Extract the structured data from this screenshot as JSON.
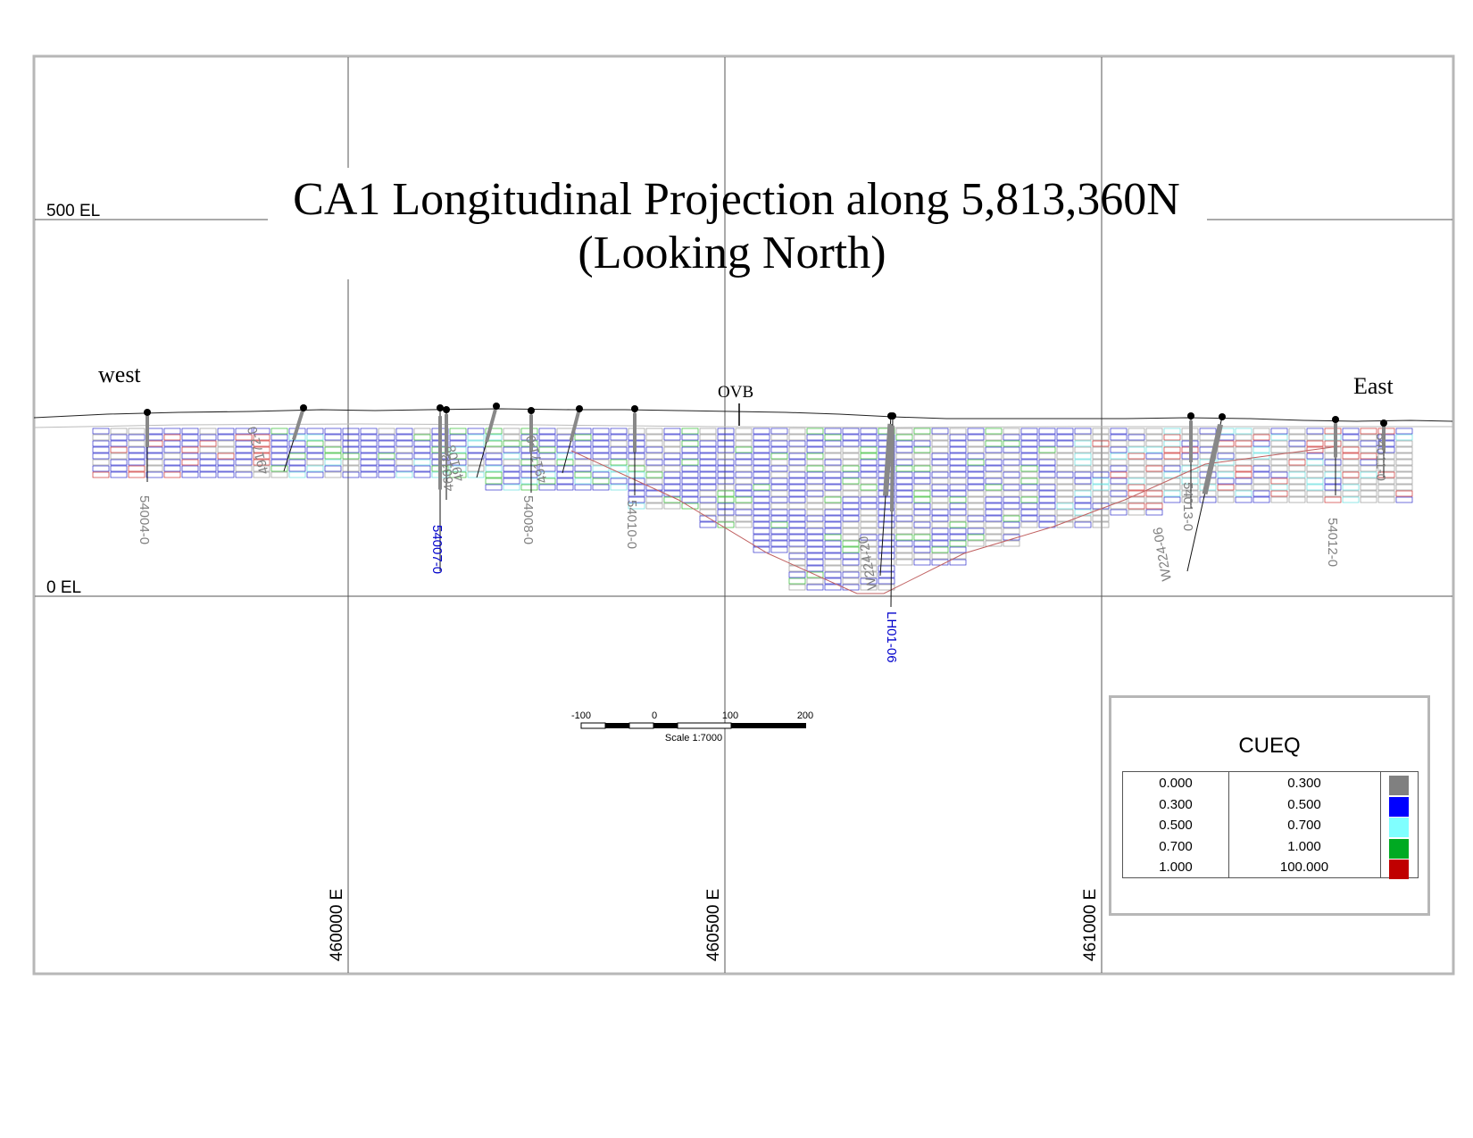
{
  "title": {
    "line1": "CA1 Longitudinal Projection along 5,813,360N",
    "line2": "(Looking North)"
  },
  "elevation_labels": [
    "500 EL",
    "0 EL"
  ],
  "easting_labels": [
    "460000 E",
    "460500 E",
    "461000 E"
  ],
  "direction_labels": {
    "west": "west",
    "east": "East"
  },
  "overburden_label": "OVB",
  "scale_bar": {
    "ticks": [
      "-100",
      "0",
      "100",
      "200"
    ],
    "caption": "Scale 1:7000"
  },
  "drillholes": [
    {
      "label": "54004-0",
      "color": "#808080"
    },
    {
      "label": "49172-0",
      "color": "#808080"
    },
    {
      "label": "54007-0",
      "color": "#0000cc"
    },
    {
      "label": "46018",
      "color": "#808080"
    },
    {
      "label": "49108",
      "color": "#808080"
    },
    {
      "label": "54008-0",
      "color": "#808080"
    },
    {
      "label": "49171-0",
      "color": "#808080"
    },
    {
      "label": "54010-0",
      "color": "#808080"
    },
    {
      "label": "W224-20",
      "color": "#808080"
    },
    {
      "label": "LH01-06",
      "color": "#0000cc"
    },
    {
      "label": "54013-0",
      "color": "#808080"
    },
    {
      "label": "W224-06",
      "color": "#808080"
    },
    {
      "label": "54012-0",
      "color": "#808080"
    },
    {
      "label": "54011-0",
      "color": "#808080"
    }
  ],
  "legend": {
    "title": "CUEQ",
    "rows": [
      {
        "from": "0.000",
        "to": "0.300",
        "color": "#808080"
      },
      {
        "from": "0.300",
        "to": "0.500",
        "color": "#0000ff"
      },
      {
        "from": "0.500",
        "to": "0.700",
        "color": "#80ffff"
      },
      {
        "from": "0.700",
        "to": "1.000",
        "color": "#00aa22"
      },
      {
        "from": "1.000",
        "to": "100.000",
        "color": "#c00000"
      }
    ]
  }
}
